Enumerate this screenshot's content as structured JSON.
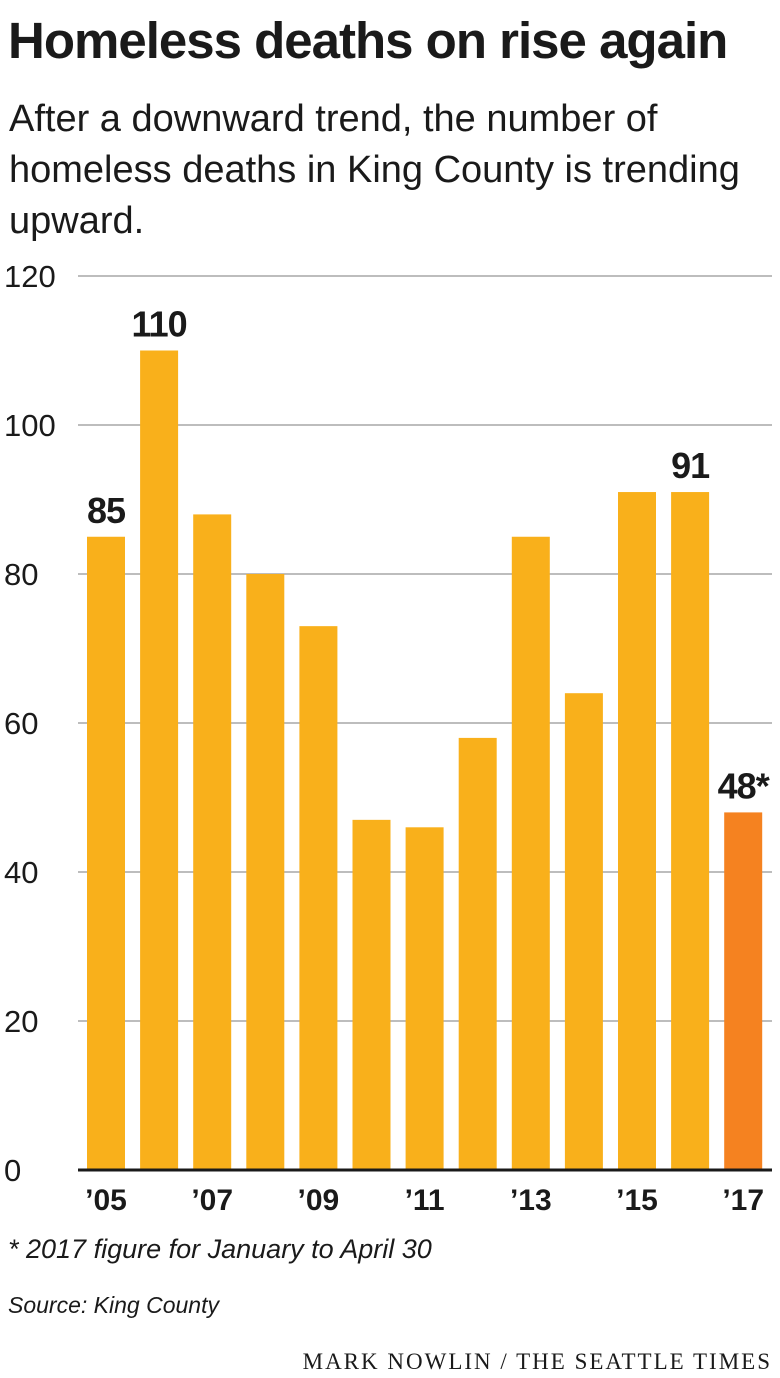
{
  "title": "Homeless deaths on rise again",
  "subtitle": "After a downward trend, the number of homeless deaths in King County is trending upward.",
  "footnote": "* 2017 figure for January to April 30",
  "source": "Source: King County",
  "credit": "MARK NOWLIN / THE SEATTLE TIMES",
  "colors": {
    "bar": "#F9B01B",
    "highlight_bar": "#F58220",
    "grid": "#bdbdbd",
    "axis": "#1a1a1a",
    "text": "#1a1a1a"
  },
  "chart_data": {
    "type": "bar",
    "categories": [
      "2005",
      "2006",
      "2007",
      "2008",
      "2009",
      "2010",
      "2011",
      "2012",
      "2013",
      "2014",
      "2015",
      "2016",
      "2017"
    ],
    "values": [
      85,
      110,
      88,
      80,
      73,
      47,
      46,
      58,
      85,
      64,
      91,
      91,
      48
    ],
    "x_tick_labels": [
      "’05",
      "",
      "’07",
      "",
      "’09",
      "",
      "’11",
      "",
      "’13",
      "",
      "’15",
      "",
      "’17"
    ],
    "data_labels": [
      "85",
      "110",
      "",
      "",
      "",
      "",
      "",
      "",
      "",
      "",
      "",
      "91",
      "48*"
    ],
    "highlight_index": 12,
    "y_ticks": [
      0,
      20,
      40,
      60,
      80,
      100,
      120
    ],
    "ylim": [
      0,
      120
    ],
    "grid": true,
    "xlabel": "",
    "ylabel": ""
  }
}
